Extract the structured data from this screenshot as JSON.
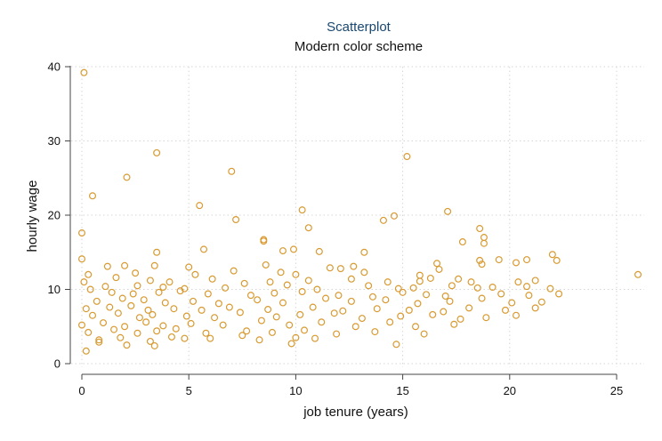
{
  "chart_data": {
    "type": "scatter",
    "title": "Scatterplot",
    "subtitle": "Modern color scheme",
    "xlabel": "job tenure (years)",
    "ylabel": "hourly wage",
    "xlim": [
      0,
      26
    ],
    "ylim": [
      0,
      40
    ],
    "xticks": [
      0,
      5,
      10,
      15,
      20,
      25
    ],
    "yticks": [
      0,
      10,
      20,
      30,
      40
    ],
    "grid": true,
    "marker_color": "#d89a31",
    "points": [
      [
        0.1,
        39.2
      ],
      [
        3.5,
        28.4
      ],
      [
        15.2,
        27.9
      ],
      [
        7.0,
        25.9
      ],
      [
        2.1,
        25.1
      ],
      [
        0.5,
        22.6
      ],
      [
        5.5,
        21.3
      ],
      [
        10.3,
        20.7
      ],
      [
        17.1,
        20.5
      ],
      [
        14.6,
        19.9
      ],
      [
        14.1,
        19.3
      ],
      [
        7.2,
        19.4
      ],
      [
        10.6,
        18.3
      ],
      [
        18.6,
        18.2
      ],
      [
        0.0,
        17.6
      ],
      [
        8.5,
        16.7
      ],
      [
        8.5,
        16.5
      ],
      [
        17.8,
        16.4
      ],
      [
        18.8,
        16.2
      ],
      [
        18.8,
        17.0
      ],
      [
        5.7,
        15.4
      ],
      [
        9.9,
        15.4
      ],
      [
        9.4,
        15.2
      ],
      [
        3.5,
        15.0
      ],
      [
        11.1,
        15.1
      ],
      [
        13.2,
        15.0
      ],
      [
        0.0,
        14.1
      ],
      [
        22.0,
        14.7
      ],
      [
        22.2,
        13.9
      ],
      [
        20.8,
        14.0
      ],
      [
        18.6,
        13.9
      ],
      [
        18.7,
        13.4
      ],
      [
        16.6,
        13.5
      ],
      [
        19.5,
        14.0
      ],
      [
        20.3,
        13.6
      ],
      [
        1.2,
        13.1
      ],
      [
        2.0,
        13.2
      ],
      [
        3.4,
        13.2
      ],
      [
        5.0,
        13.0
      ],
      [
        8.6,
        13.3
      ],
      [
        11.6,
        12.9
      ],
      [
        12.7,
        13.1
      ],
      [
        16.7,
        12.7
      ],
      [
        0.3,
        12.0
      ],
      [
        2.5,
        12.2
      ],
      [
        5.3,
        12.0
      ],
      [
        7.1,
        12.5
      ],
      [
        9.3,
        12.3
      ],
      [
        10.0,
        12.0
      ],
      [
        12.1,
        12.8
      ],
      [
        13.2,
        12.3
      ],
      [
        15.8,
        11.9
      ],
      [
        16.3,
        11.5
      ],
      [
        17.6,
        11.4
      ],
      [
        21.2,
        11.2
      ],
      [
        26.0,
        12.0
      ],
      [
        0.1,
        11.0
      ],
      [
        1.6,
        11.6
      ],
      [
        3.2,
        11.2
      ],
      [
        4.1,
        11.0
      ],
      [
        6.1,
        11.4
      ],
      [
        8.8,
        11.0
      ],
      [
        10.6,
        11.2
      ],
      [
        12.6,
        11.4
      ],
      [
        14.3,
        11.0
      ],
      [
        15.8,
        11.1
      ],
      [
        18.2,
        11.0
      ],
      [
        20.4,
        11.0
      ],
      [
        0.4,
        10.0
      ],
      [
        1.1,
        10.4
      ],
      [
        2.6,
        10.5
      ],
      [
        3.8,
        10.3
      ],
      [
        4.8,
        10.1
      ],
      [
        6.7,
        10.2
      ],
      [
        7.6,
        10.8
      ],
      [
        9.6,
        10.6
      ],
      [
        11.0,
        10.0
      ],
      [
        13.4,
        10.5
      ],
      [
        14.8,
        10.1
      ],
      [
        15.5,
        10.2
      ],
      [
        17.3,
        10.5
      ],
      [
        18.5,
        10.2
      ],
      [
        19.2,
        10.3
      ],
      [
        20.8,
        10.4
      ],
      [
        21.9,
        10.1
      ],
      [
        1.4,
        9.6
      ],
      [
        2.4,
        9.4
      ],
      [
        3.6,
        9.6
      ],
      [
        4.6,
        9.8
      ],
      [
        5.9,
        9.4
      ],
      [
        7.9,
        9.2
      ],
      [
        9.0,
        9.5
      ],
      [
        10.3,
        9.7
      ],
      [
        12.0,
        9.2
      ],
      [
        13.6,
        9.0
      ],
      [
        15.0,
        9.6
      ],
      [
        16.1,
        9.3
      ],
      [
        17.0,
        9.1
      ],
      [
        19.6,
        9.4
      ],
      [
        20.9,
        9.2
      ],
      [
        22.3,
        9.4
      ],
      [
        0.7,
        8.4
      ],
      [
        1.9,
        8.8
      ],
      [
        2.9,
        8.6
      ],
      [
        3.9,
        8.2
      ],
      [
        5.2,
        8.4
      ],
      [
        6.4,
        8.1
      ],
      [
        8.2,
        8.6
      ],
      [
        9.4,
        8.2
      ],
      [
        11.4,
        8.8
      ],
      [
        12.6,
        8.4
      ],
      [
        14.2,
        8.6
      ],
      [
        15.7,
        8.1
      ],
      [
        17.2,
        8.4
      ],
      [
        18.7,
        8.8
      ],
      [
        20.1,
        8.2
      ],
      [
        21.5,
        8.3
      ],
      [
        0.2,
        7.4
      ],
      [
        1.3,
        7.6
      ],
      [
        2.3,
        7.8
      ],
      [
        3.1,
        7.2
      ],
      [
        4.3,
        7.4
      ],
      [
        5.6,
        7.2
      ],
      [
        6.9,
        7.6
      ],
      [
        8.7,
        7.3
      ],
      [
        10.8,
        7.6
      ],
      [
        12.2,
        7.1
      ],
      [
        13.8,
        7.4
      ],
      [
        15.3,
        7.2
      ],
      [
        16.9,
        7.0
      ],
      [
        18.1,
        7.5
      ],
      [
        19.8,
        7.2
      ],
      [
        21.2,
        7.5
      ],
      [
        0.5,
        6.5
      ],
      [
        1.7,
        6.8
      ],
      [
        2.7,
        6.2
      ],
      [
        3.3,
        6.6
      ],
      [
        4.9,
        6.4
      ],
      [
        6.2,
        6.2
      ],
      [
        7.4,
        6.9
      ],
      [
        9.1,
        6.3
      ],
      [
        10.2,
        6.6
      ],
      [
        11.8,
        6.8
      ],
      [
        13.1,
        6.1
      ],
      [
        14.9,
        6.4
      ],
      [
        16.4,
        6.6
      ],
      [
        17.7,
        6.0
      ],
      [
        18.9,
        6.2
      ],
      [
        20.3,
        6.5
      ],
      [
        0.0,
        5.2
      ],
      [
        1.0,
        5.5
      ],
      [
        2.0,
        5.0
      ],
      [
        3.0,
        5.6
      ],
      [
        3.8,
        5.1
      ],
      [
        5.1,
        5.4
      ],
      [
        6.6,
        5.2
      ],
      [
        8.4,
        5.8
      ],
      [
        9.7,
        5.2
      ],
      [
        11.2,
        5.6
      ],
      [
        12.8,
        5.0
      ],
      [
        14.4,
        5.6
      ],
      [
        15.6,
        5.0
      ],
      [
        17.4,
        5.3
      ],
      [
        0.3,
        4.2
      ],
      [
        1.5,
        4.6
      ],
      [
        2.6,
        4.1
      ],
      [
        3.5,
        4.4
      ],
      [
        4.4,
        4.7
      ],
      [
        5.8,
        4.1
      ],
      [
        7.7,
        4.4
      ],
      [
        8.9,
        4.2
      ],
      [
        10.4,
        4.5
      ],
      [
        11.9,
        4.0
      ],
      [
        13.7,
        4.3
      ],
      [
        16.0,
        4.0
      ],
      [
        0.8,
        3.2
      ],
      [
        1.8,
        3.5
      ],
      [
        3.2,
        3.0
      ],
      [
        4.2,
        3.6
      ],
      [
        6.0,
        3.4
      ],
      [
        7.5,
        3.8
      ],
      [
        8.3,
        3.2
      ],
      [
        10.0,
        3.5
      ],
      [
        10.9,
        3.4
      ],
      [
        2.1,
        2.5
      ],
      [
        3.4,
        2.4
      ],
      [
        0.8,
        2.9
      ],
      [
        9.8,
        2.7
      ],
      [
        14.7,
        2.6
      ],
      [
        0.2,
        1.7
      ],
      [
        4.8,
        3.4
      ]
    ]
  }
}
